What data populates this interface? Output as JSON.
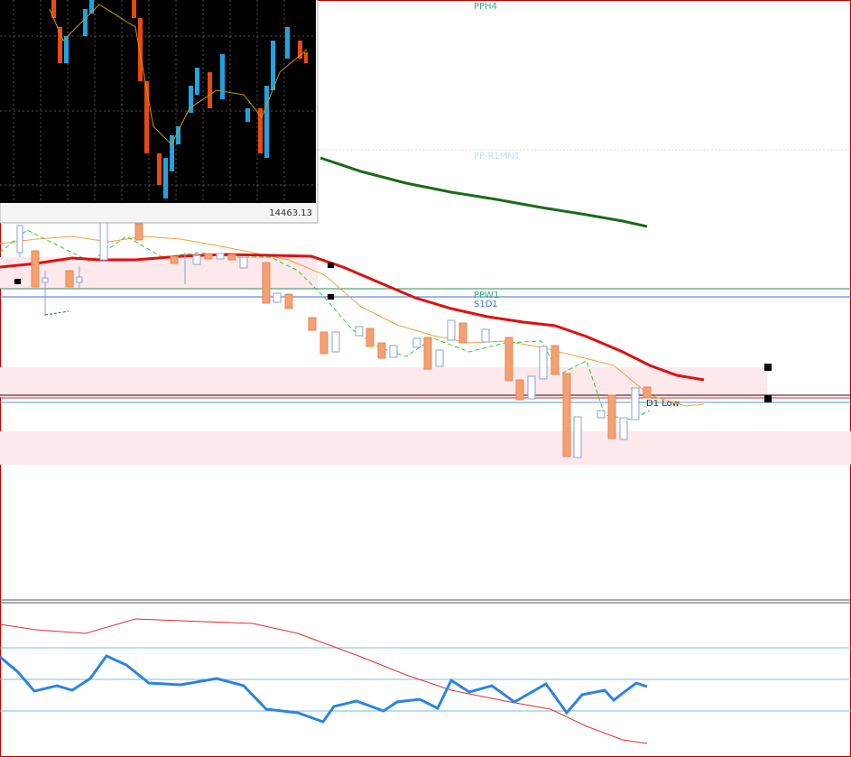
{
  "inset": {
    "price": "14463.13"
  },
  "levels": {
    "pph4": "PPH4",
    "pp_r1mn1": "PP-R1MN1",
    "ppw1": "PPW1",
    "s1d1": "S1D1",
    "d1_low": "D1 Low"
  }
}
